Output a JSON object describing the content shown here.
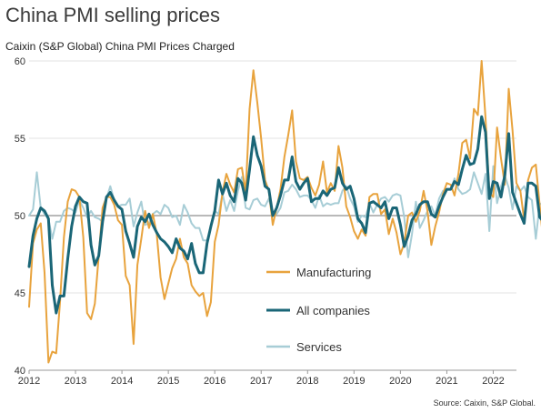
{
  "title": "China PMI selling prices",
  "subtitle": "Caixin (S&P Global) China PMI Prices Charged",
  "source": "Source: Caixin, S&P Global.",
  "colors": {
    "manufacturing": "#e8a33d",
    "all_companies": "#1a6677",
    "services": "#a7cdd6",
    "grid": "#e3e3e3",
    "reference_line": "#8f8f8f"
  },
  "chart_data": {
    "type": "line",
    "title": "China PMI selling prices",
    "subtitle": "Caixin (S&P Global) China PMI Prices Charged",
    "xlabel": "",
    "ylabel": "",
    "xlim": [
      2012.0,
      2022.5
    ],
    "ylim": [
      40,
      60
    ],
    "x_ticks": [
      "2012",
      "2013",
      "2014",
      "2015",
      "2016",
      "2017",
      "2018",
      "2019",
      "2020",
      "2021",
      "2022"
    ],
    "y_ticks": [
      40,
      45,
      50,
      55,
      60
    ],
    "reference_line": 50,
    "grid": "horizontal",
    "legend_position": "lower-right",
    "start": "2012-01",
    "frequency": "monthly",
    "series": [
      {
        "name": "Manufacturing",
        "color": "#e8a33d",
        "values": [
          44.1,
          48.2,
          49.1,
          49.5,
          46.3,
          40.5,
          41.2,
          41.1,
          44.4,
          48.6,
          50.9,
          51.7,
          51.6,
          51.2,
          48.6,
          43.7,
          43.3,
          44.3,
          47.4,
          50.5,
          51.2,
          51.2,
          50.7,
          49.7,
          49.4,
          46.1,
          45.5,
          41.7,
          46.8,
          48.5,
          50.3,
          49.2,
          50.1,
          48.8,
          46.0,
          44.6,
          45.6,
          46.6,
          47.2,
          48.5,
          47.3,
          46.9,
          45.5,
          45.1,
          44.8,
          45.0,
          43.5,
          44.4,
          48.3,
          49.4,
          51.5,
          52.7,
          52.0,
          51.5,
          53.0,
          53.1,
          51.5,
          56.9,
          59.4,
          57.3,
          55.0,
          52.3,
          51.6,
          49.4,
          50.5,
          51.7,
          53.8,
          55.2,
          56.8,
          53.5,
          52.4,
          52.3,
          52.5,
          51.8,
          51.3,
          52.0,
          53.5,
          51.5,
          52.1,
          51.6,
          54.5,
          53.1,
          50.6,
          49.9,
          49.0,
          48.5,
          49.1,
          48.7,
          51.2,
          51.4,
          51.4,
          50.1,
          50.4,
          48.8,
          49.8,
          48.9,
          47.5,
          48.2,
          50.0,
          50.2,
          49.6,
          50.3,
          51.6,
          50.3,
          48.1,
          49.3,
          50.2,
          51.4,
          52.1,
          52.0,
          51.3,
          52.7,
          54.7,
          54.9,
          53.7,
          56.9,
          56.5,
          60.0,
          56.3,
          51.5,
          51.2,
          55.7,
          53.7,
          52.0,
          58.2,
          55.5,
          52.1,
          51.6,
          49.7,
          52.3,
          53.1,
          53.3,
          50.7,
          48.2,
          49.7
        ]
      },
      {
        "name": "All companies",
        "color": "#1a6677",
        "values": [
          46.7,
          48.7,
          49.8,
          50.5,
          50.3,
          49.8,
          45.5,
          43.7,
          44.8,
          44.8,
          47.2,
          49.3,
          50.6,
          51.2,
          50.9,
          50.8,
          48.1,
          46.8,
          47.4,
          49.6,
          51.2,
          51.5,
          51.0,
          50.6,
          50.4,
          49.0,
          48.2,
          47.3,
          49.3,
          49.9,
          49.6,
          50.1,
          49.4,
          48.9,
          48.5,
          48.3,
          48.0,
          47.6,
          48.5,
          47.9,
          47.7,
          47.2,
          48.2,
          46.9,
          46.3,
          46.3,
          48.2,
          49.3,
          50.3,
          52.3,
          51.4,
          52.1,
          51.3,
          50.9,
          52.4,
          52.1,
          51.0,
          53.0,
          55.1,
          53.9,
          53.2,
          51.9,
          51.7,
          50.0,
          50.5,
          51.3,
          52.3,
          52.3,
          53.8,
          52.2,
          51.7,
          52.1,
          52.4,
          50.9,
          51.1,
          51.1,
          51.6,
          51.3,
          51.7,
          51.8,
          53.1,
          52.1,
          51.7,
          51.9,
          51.1,
          49.8,
          49.5,
          48.9,
          50.8,
          50.9,
          50.7,
          50.5,
          50.9,
          49.8,
          50.5,
          50.5,
          49.4,
          48.0,
          48.7,
          49.7,
          50.1,
          50.7,
          50.9,
          50.9,
          50.1,
          49.9,
          50.6,
          51.2,
          51.7,
          51.7,
          52.2,
          52.0,
          53.0,
          53.9,
          53.3,
          53.4,
          54.3,
          56.4,
          55.4,
          51.1,
          52.2,
          52.1,
          51.2,
          52.6,
          55.3,
          51.5,
          50.8,
          50.1,
          49.5,
          52.1,
          52.1,
          51.9,
          49.9,
          49.6,
          50.1
        ]
      },
      {
        "name": "Services",
        "color": "#a7cdd6",
        "values": [
          50.0,
          50.4,
          52.8,
          50.5,
          50.1,
          49.8,
          48.5,
          49.6,
          49.6,
          50.3,
          50.5,
          50.4,
          50.2,
          51.0,
          50.5,
          49.9,
          50.3,
          49.9,
          49.8,
          49.6,
          51.1,
          51.9,
          51.0,
          50.6,
          50.7,
          50.7,
          51.1,
          49.3,
          50.2,
          50.9,
          49.4,
          49.5,
          50.1,
          50.3,
          50.1,
          50.7,
          50.5,
          49.9,
          50.0,
          49.4,
          50.7,
          50.2,
          49.5,
          49.2,
          49.2,
          48.4,
          48.4,
          49.2,
          50.3,
          50.1,
          51.4,
          50.3,
          51.0,
          50.3,
          51.6,
          52.5,
          50.5,
          50.4,
          51.0,
          51.1,
          50.7,
          50.6,
          51.1,
          50.1,
          50.1,
          50.5,
          51.5,
          51.6,
          52.0,
          51.7,
          51.2,
          51.3,
          51.3,
          51.0,
          50.5,
          51.3,
          50.6,
          50.8,
          50.7,
          50.8,
          50.8,
          51.6,
          51.9,
          51.1,
          50.6,
          49.6,
          50.0,
          49.9,
          50.8,
          50.2,
          50.7,
          51.1,
          51.2,
          50.9,
          51.3,
          51.4,
          51.3,
          49.9,
          47.3,
          48.8,
          50.9,
          49.2,
          49.7,
          50.3,
          50.6,
          50.0,
          51.1,
          51.6,
          51.7,
          51.7,
          52.4,
          51.7,
          51.4,
          51.5,
          51.7,
          52.8,
          52.1,
          51.4,
          52.7,
          49.0,
          53.2,
          50.8,
          51.9,
          52.6,
          51.8,
          50.4,
          51.9,
          51.6,
          51.9,
          51.2,
          51.0,
          48.5,
          50.7,
          50.9,
          50.5
        ]
      }
    ]
  }
}
